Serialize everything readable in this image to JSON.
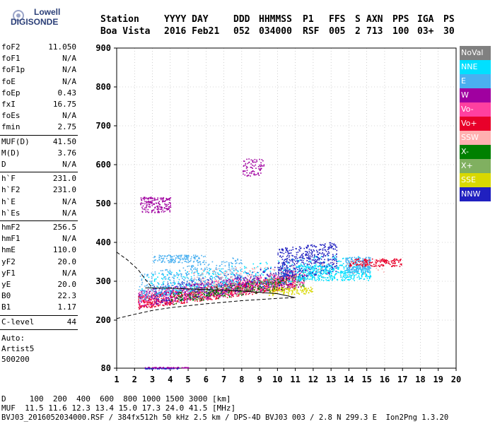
{
  "logo": {
    "line1": "Lowell",
    "line2": "DIGISONDE"
  },
  "header": {
    "row1": [
      "Station",
      "YYYY DAY",
      "DDD",
      "HHMMSS",
      "P1",
      "FFS",
      "S",
      "AXN",
      "PPS",
      "IGA",
      "PS"
    ],
    "row2": [
      "Boa Vista",
      "2016 Feb21",
      "052",
      "034000",
      "RSF",
      "005",
      "2",
      "713",
      "100",
      "03+",
      "30"
    ]
  },
  "params": {
    "group1": [
      {
        "k": "foF2",
        "v": "11.050"
      },
      {
        "k": "foF1",
        "v": "N/A"
      },
      {
        "k": "foF1p",
        "v": "N/A"
      },
      {
        "k": "foE",
        "v": "N/A"
      },
      {
        "k": "foEp",
        "v": "0.43"
      },
      {
        "k": "fxI",
        "v": "16.75"
      },
      {
        "k": "foEs",
        "v": "N/A"
      },
      {
        "k": "fmin",
        "v": "2.75"
      }
    ],
    "group2": [
      {
        "k": "MUF(D)",
        "v": "41.50"
      },
      {
        "k": "M(D)",
        "v": "3.76"
      },
      {
        "k": "D",
        "v": "N/A"
      }
    ],
    "group3": [
      {
        "k": "h`F",
        "v": "231.0"
      },
      {
        "k": "h`F2",
        "v": "231.0"
      },
      {
        "k": "h`E",
        "v": "N/A"
      },
      {
        "k": "h`Es",
        "v": "N/A"
      }
    ],
    "group4": [
      {
        "k": "hmF2",
        "v": "256.5"
      },
      {
        "k": "hmF1",
        "v": "N/A"
      },
      {
        "k": "hmE",
        "v": "110.0"
      },
      {
        "k": "yF2",
        "v": "20.0"
      },
      {
        "k": "yF1",
        "v": "N/A"
      },
      {
        "k": "yE",
        "v": "20.0"
      },
      {
        "k": "B0",
        "v": "22.3"
      },
      {
        "k": "B1",
        "v": "1.17"
      }
    ],
    "group5": [
      {
        "k": "C-level",
        "v": "44"
      }
    ],
    "auto": [
      "Auto:",
      "Artist5",
      "500200"
    ]
  },
  "footer": {
    "line1": "D     100  200  400  600  800 1000 1500 3000 [km]",
    "line2": "MUF  11.5 11.6 12.3 13.4 15.0 17.3 24.0 41.5 [MHz]",
    "line3": "BVJ03_2016052034000.RSF / 384fx512h 50 kHz 2.5 km / DPS-4D BVJ03 003 / 2.8 N 299.3 E  Ion2Png 1.3.20"
  },
  "legend": [
    {
      "label": "NoVal",
      "color": "#808080",
      "text": "#ffffff"
    },
    {
      "label": "NNE",
      "color": "#00e0ff",
      "text": "#ffffff"
    },
    {
      "label": "E",
      "color": "#4ab0f0",
      "text": "#ffffff"
    },
    {
      "label": "W",
      "color": "#a000a0",
      "text": "#ffffff"
    },
    {
      "label": "Vo-",
      "color": "#ff40a0",
      "text": "#ffffff"
    },
    {
      "label": "Vo+",
      "color": "#e8002a",
      "text": "#ffffff"
    },
    {
      "label": "SSW",
      "color": "#ffb0b0",
      "text": "#ffffff"
    },
    {
      "label": "X-",
      "color": "#008000",
      "text": "#ffffff"
    },
    {
      "label": "X+",
      "color": "#80b060",
      "text": "#ffffff"
    },
    {
      "label": "SSE",
      "color": "#d8d800",
      "text": "#ffffff"
    },
    {
      "label": "NNW",
      "color": "#2020c0",
      "text": "#ffffff"
    }
  ],
  "chart_data": {
    "type": "scatter",
    "title": "",
    "xlabel": "",
    "ylabel": "",
    "xlim": [
      1,
      20
    ],
    "ylim": [
      80,
      900
    ],
    "xticks": [
      1,
      2,
      3,
      4,
      5,
      6,
      7,
      8,
      9,
      10,
      11,
      12,
      13,
      14,
      15,
      16,
      17,
      18,
      19,
      20
    ],
    "yticks": [
      80,
      200,
      300,
      400,
      500,
      600,
      700,
      800,
      900
    ],
    "grid": true,
    "legend_position": "right",
    "profile_upper": {
      "x": [
        1.0,
        1.6,
        2.2,
        2.6,
        3.0
      ],
      "y": [
        375,
        355,
        330,
        305,
        283
      ]
    },
    "profile_lower": {
      "x": [
        1.0,
        2.0,
        3.0,
        4.0,
        5.0,
        6.0,
        7.0,
        8.0,
        9.0,
        10.0,
        11.0
      ],
      "y": [
        204,
        215,
        225,
        232,
        237,
        242,
        246,
        250,
        253,
        256,
        258
      ]
    },
    "profile_tail": {
      "x": [
        2.6,
        4,
        6,
        8,
        10,
        11
      ],
      "y": [
        283,
        282,
        279,
        275,
        268,
        258
      ]
    },
    "echo_clusters": [
      {
        "series": "Vo+",
        "x_range": [
          2.2,
          11.0
        ],
        "y_base": 240,
        "y_slope": 6,
        "spread": 35,
        "n": 900
      },
      {
        "series": "Vo-",
        "x_range": [
          2.2,
          11.5
        ],
        "y_base": 248,
        "y_slope": 6,
        "spread": 40,
        "n": 500
      },
      {
        "series": "NNW",
        "x_range": [
          3.0,
          11.0
        ],
        "y_base": 255,
        "y_slope": 7,
        "spread": 50,
        "n": 400
      },
      {
        "series": "W",
        "x_range": [
          2.2,
          11.5
        ],
        "y_base": 245,
        "y_slope": 6,
        "spread": 45,
        "n": 400
      },
      {
        "series": "E",
        "x_range": [
          2.2,
          8.0
        ],
        "y_base": 270,
        "y_slope": 8,
        "spread": 70,
        "n": 400
      },
      {
        "series": "NNE",
        "x_range": [
          2.3,
          14.5
        ],
        "y_base": 275,
        "y_slope": 5,
        "spread": 60,
        "n": 350
      },
      {
        "series": "X-",
        "x_range": [
          4.0,
          11.5
        ],
        "y_base": 250,
        "y_slope": 6,
        "spread": 30,
        "n": 200
      },
      {
        "series": "SSE",
        "x_range": [
          9.5,
          12.0
        ],
        "y_base": 270,
        "y_slope": 2,
        "spread": 20,
        "n": 120
      },
      {
        "series": "SSW",
        "x_range": [
          5.0,
          16.0
        ],
        "y_base": 300,
        "y_slope": 3,
        "spread": 40,
        "n": 200
      },
      {
        "series": "X+",
        "x_range": [
          5.0,
          11.5
        ],
        "y_base": 260,
        "y_slope": 6,
        "spread": 35,
        "n": 150
      },
      {
        "series": "NNW",
        "x_range": [
          10.0,
          13.3
        ],
        "y_base": 330,
        "y_slope": 5,
        "spread": 80,
        "n": 450
      },
      {
        "series": "NNE",
        "x_range": [
          11.0,
          15.2
        ],
        "y_base": 315,
        "y_slope": 0,
        "spread": 40,
        "n": 400
      },
      {
        "series": "E",
        "x_range": [
          13.8,
          15.2
        ],
        "y_base": 335,
        "y_slope": 0,
        "spread": 40,
        "n": 200
      },
      {
        "series": "Vo+",
        "x_range": [
          14.0,
          17.0
        ],
        "y_base": 345,
        "y_slope": 0,
        "spread": 20,
        "n": 150
      },
      {
        "series": "W",
        "x_range": [
          2.3,
          4.0
        ],
        "y_base": 490,
        "y_slope": 0,
        "spread": 40,
        "n": 180
      },
      {
        "series": "W",
        "x_range": [
          8.0,
          9.3
        ],
        "y_base": 585,
        "y_slope": 0,
        "spread": 45,
        "n": 80
      },
      {
        "series": "E",
        "x_range": [
          3.0,
          6.0
        ],
        "y_base": 355,
        "y_slope": 0,
        "spread": 20,
        "n": 150
      },
      {
        "series": "NNW",
        "x_range": [
          2.5,
          4.5
        ],
        "y_base": 80,
        "y_slope": 0,
        "spread": 2,
        "n": 60
      },
      {
        "series": "W",
        "x_range": [
          2.5,
          5.0
        ],
        "y_base": 82,
        "y_slope": 0,
        "spread": 2,
        "n": 50
      }
    ]
  }
}
